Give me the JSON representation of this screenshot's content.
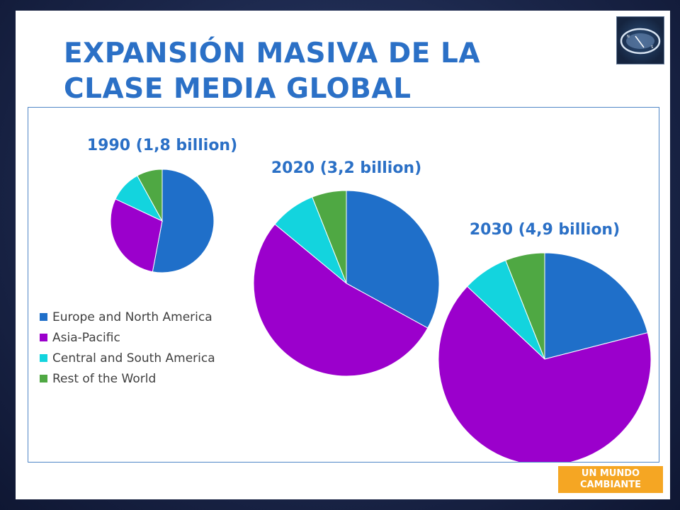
{
  "slide": {
    "title_line1": "EXPANSIÓN MASIVA DE LA",
    "title_line2": "CLASE MEDIA GLOBAL",
    "badge_line1": "UN MUNDO",
    "badge_line2": "CAMBIANTE"
  },
  "colors": {
    "europe_north_america": "#1f6fc9",
    "asia_pacific": "#9b00cc",
    "central_south_america": "#13d4de",
    "rest_of_world": "#4fa843",
    "title": "#2b70c6",
    "badge": "#f5a623"
  },
  "chart_data": {
    "type": "pie",
    "legend_position": "left",
    "categories": [
      "Europe and North America",
      "Asia-Pacific",
      "Central and South America",
      "Rest of the World"
    ],
    "pies": [
      {
        "title": "1990 (1,8 billion)",
        "values": [
          53,
          29,
          10,
          8
        ]
      },
      {
        "title": "2020 (3,2 billion)",
        "values": [
          33,
          53,
          8,
          6
        ]
      },
      {
        "title": "2030 (4,9 billion)",
        "values": [
          21,
          66,
          7,
          6
        ]
      }
    ]
  }
}
